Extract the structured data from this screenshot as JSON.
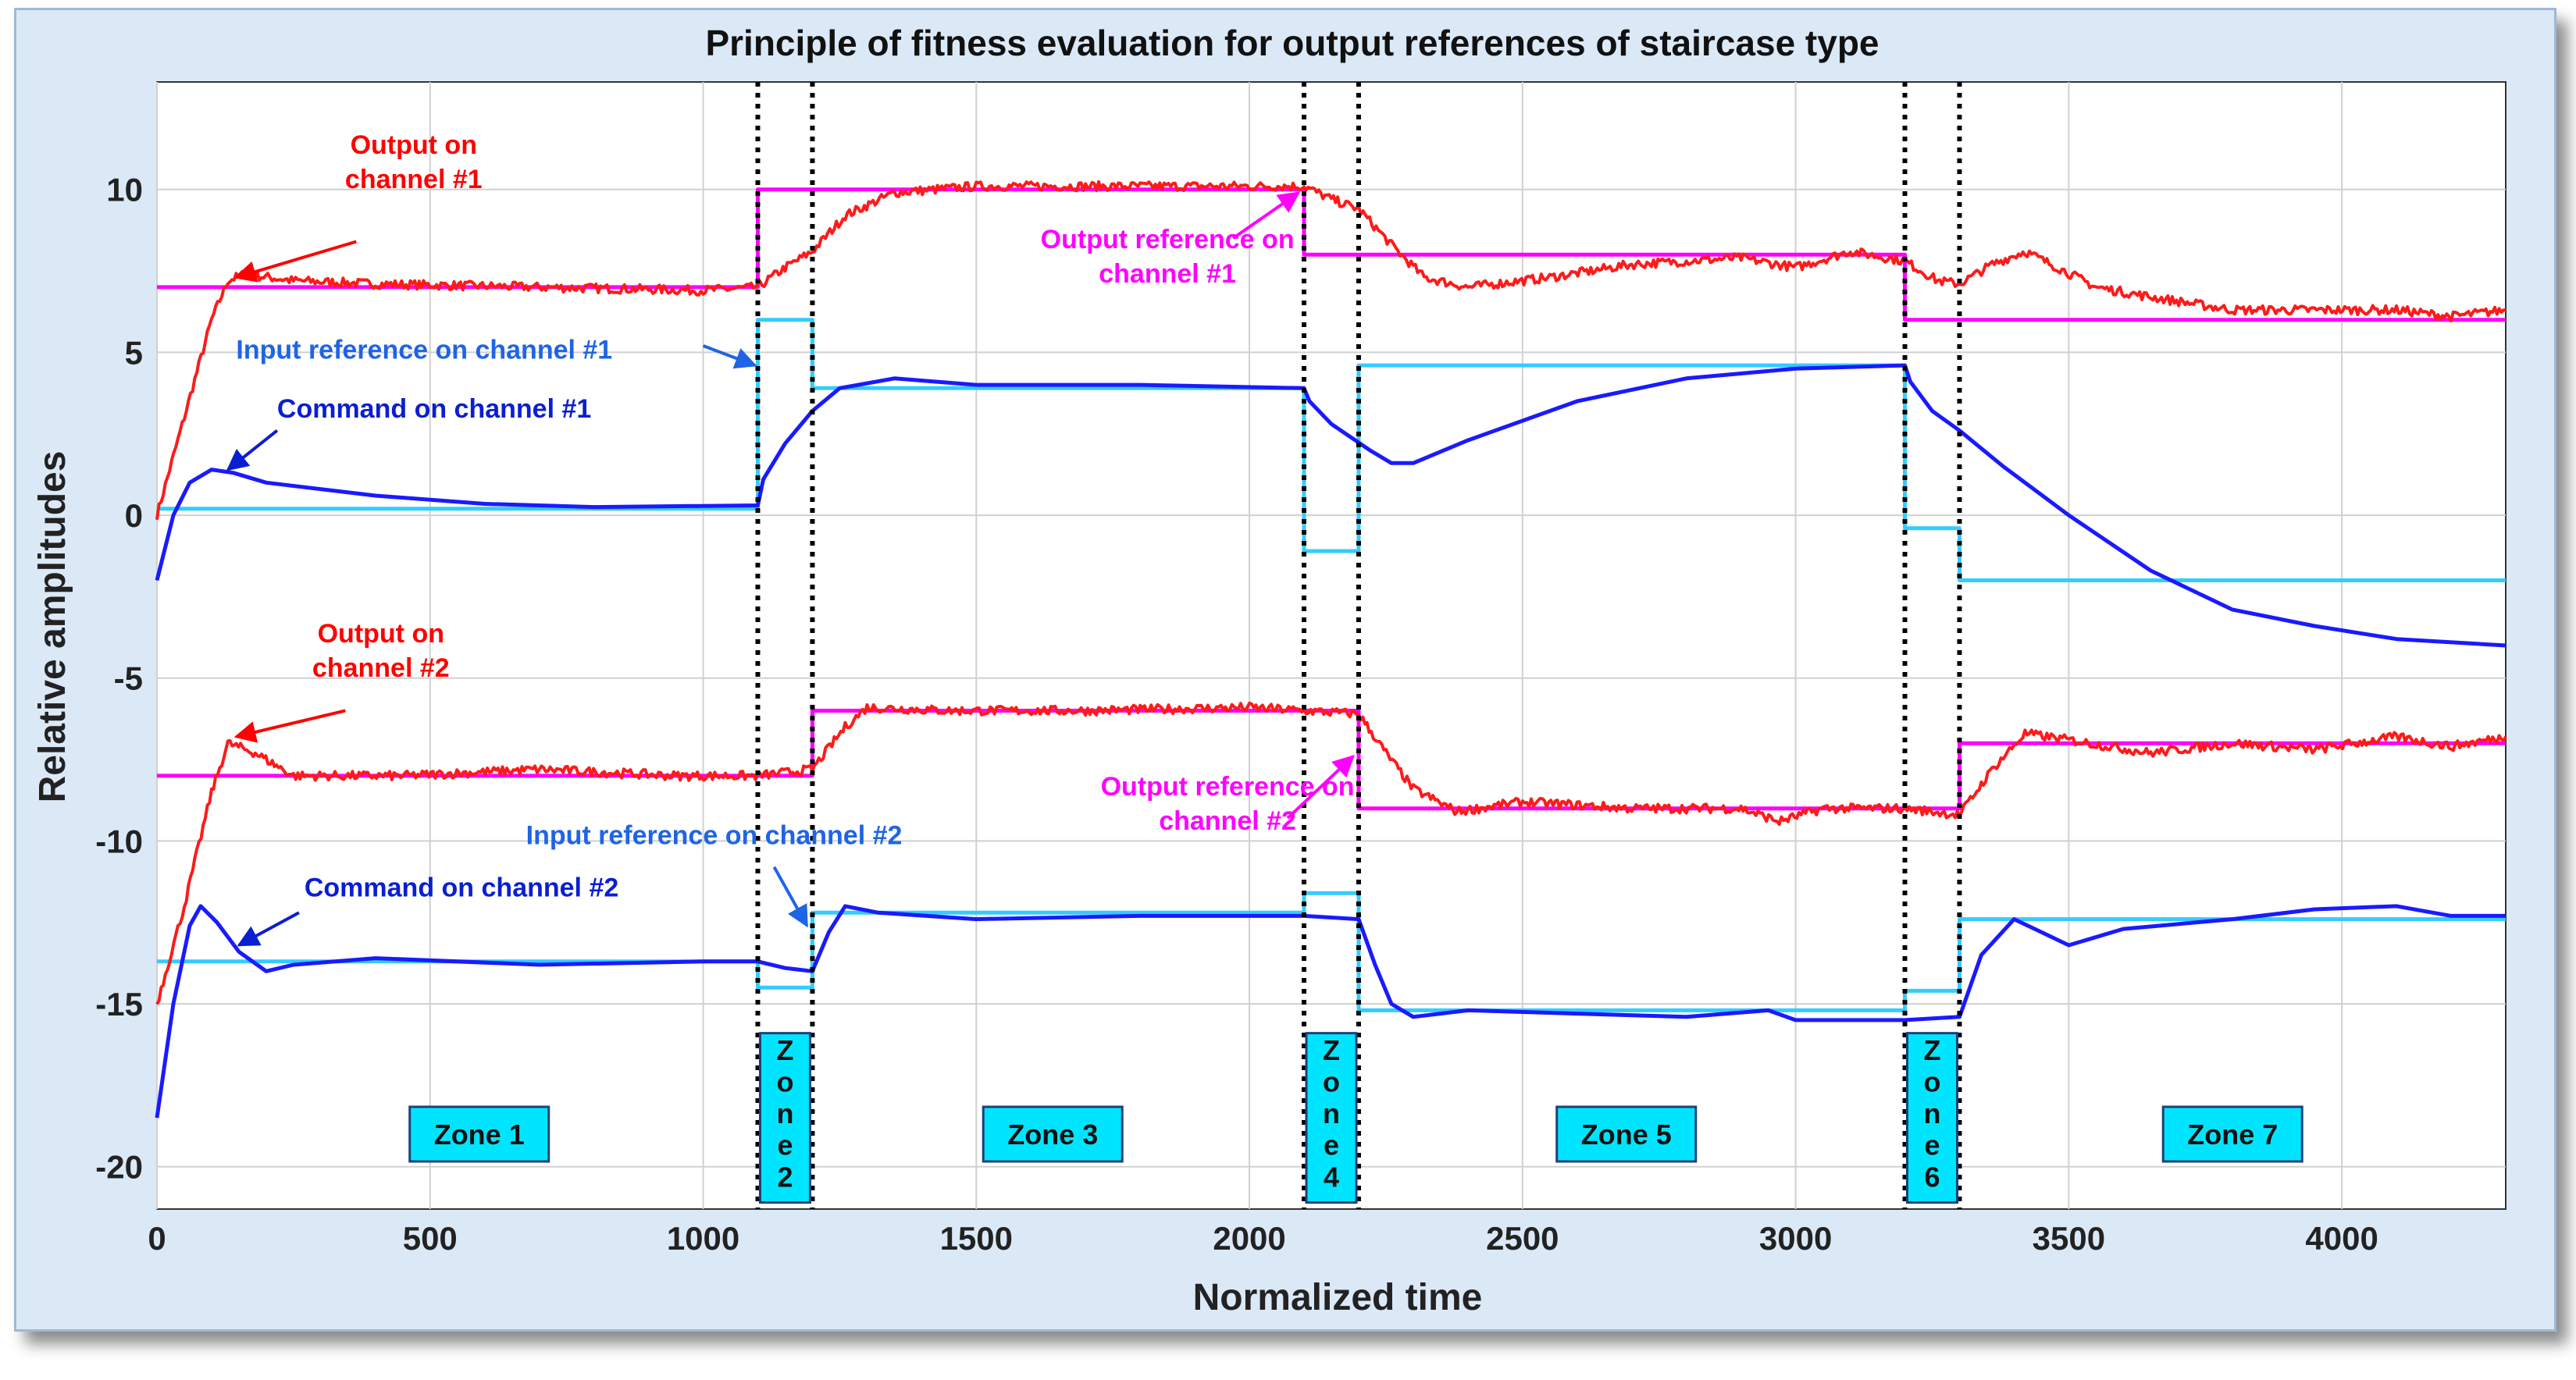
{
  "chart_data": {
    "type": "line",
    "title": "Principle of fitness evaluation for output references of staircase type",
    "xlabel": "Normalized time",
    "ylabel": "Relative amplitudes",
    "xlim": [
      0,
      4300
    ],
    "ylim": [
      -21.3,
      13.3
    ],
    "xticks": [
      0,
      500,
      1000,
      1500,
      2000,
      2500,
      3000,
      3500,
      4000
    ],
    "yticks": [
      10,
      5,
      0,
      -5,
      -10,
      -15,
      -20
    ],
    "grid": true,
    "colors": {
      "output": "#ff1a1a",
      "output_reference": "#ff00ff",
      "input_reference": "#33ccff",
      "command": "#1a1aff",
      "zone_box": "#00e5ff",
      "background": "#dbe9f7"
    },
    "zone_boundaries": [
      1100,
      1200,
      2100,
      2200,
      3200,
      3300
    ],
    "zones": [
      {
        "label": "Zone 1",
        "x": 590,
        "vertical": false
      },
      {
        "label": "Zone 2",
        "x": 1150,
        "vertical": true
      },
      {
        "label": "Zone 3",
        "x": 1640,
        "vertical": false
      },
      {
        "label": "Zone 4",
        "x": 2150,
        "vertical": true
      },
      {
        "label": "Zone 5",
        "x": 2690,
        "vertical": false
      },
      {
        "label": "Zone 6",
        "x": 3250,
        "vertical": true
      },
      {
        "label": "Zone 7",
        "x": 3800,
        "vertical": false
      }
    ],
    "series": [
      {
        "name": "Output reference on channel #1",
        "color": "#ff00ff",
        "step": true,
        "points": [
          [
            0,
            7
          ],
          [
            1100,
            7
          ],
          [
            1100,
            10
          ],
          [
            2100,
            10
          ],
          [
            2100,
            8
          ],
          [
            3200,
            8
          ],
          [
            3200,
            6
          ],
          [
            4300,
            6
          ]
        ]
      },
      {
        "name": "Output reference on channel #2",
        "color": "#ff00ff",
        "step": true,
        "points": [
          [
            0,
            -8
          ],
          [
            1200,
            -8
          ],
          [
            1200,
            -6
          ],
          [
            2200,
            -6
          ],
          [
            2200,
            -9
          ],
          [
            3300,
            -9
          ],
          [
            3300,
            -7
          ],
          [
            4300,
            -7
          ]
        ]
      },
      {
        "name": "Input reference on channel #1",
        "color": "#33ccff",
        "step": true,
        "points": [
          [
            0,
            0.2
          ],
          [
            1100,
            0.2
          ],
          [
            1100,
            6
          ],
          [
            1200,
            6
          ],
          [
            1200,
            3.9
          ],
          [
            2100,
            3.9
          ],
          [
            2100,
            -1.1
          ],
          [
            2200,
            -1.1
          ],
          [
            2200,
            4.6
          ],
          [
            3200,
            4.6
          ],
          [
            3200,
            -0.4
          ],
          [
            3300,
            -0.4
          ],
          [
            3300,
            -2
          ],
          [
            4300,
            -2
          ]
        ]
      },
      {
        "name": "Input reference on channel #2",
        "color": "#33ccff",
        "step": true,
        "points": [
          [
            0,
            -13.7
          ],
          [
            1100,
            -13.7
          ],
          [
            1100,
            -14.5
          ],
          [
            1200,
            -14.5
          ],
          [
            1200,
            -12.2
          ],
          [
            2100,
            -12.2
          ],
          [
            2100,
            -11.6
          ],
          [
            2200,
            -11.6
          ],
          [
            2200,
            -15.2
          ],
          [
            3200,
            -15.2
          ],
          [
            3200,
            -14.6
          ],
          [
            3300,
            -14.6
          ],
          [
            3300,
            -12.4
          ],
          [
            4300,
            -12.4
          ]
        ]
      },
      {
        "name": "Output on channel #1",
        "color": "#ff1a1a",
        "noisy": true,
        "points": [
          [
            0,
            0
          ],
          [
            50,
            3
          ],
          [
            100,
            6
          ],
          [
            130,
            7.2
          ],
          [
            160,
            7.4
          ],
          [
            250,
            7.2
          ],
          [
            400,
            7.1
          ],
          [
            700,
            7
          ],
          [
            1000,
            6.9
          ],
          [
            1100,
            7
          ],
          [
            1150,
            7.6
          ],
          [
            1200,
            8.1
          ],
          [
            1260,
            9.2
          ],
          [
            1350,
            9.9
          ],
          [
            1500,
            10.1
          ],
          [
            1800,
            10.1
          ],
          [
            2100,
            10.1
          ],
          [
            2150,
            9.7
          ],
          [
            2200,
            9.4
          ],
          [
            2260,
            8.3
          ],
          [
            2320,
            7.3
          ],
          [
            2400,
            7
          ],
          [
            2550,
            7.3
          ],
          [
            2700,
            7.7
          ],
          [
            2900,
            7.9
          ],
          [
            3000,
            7.6
          ],
          [
            3100,
            8.1
          ],
          [
            3200,
            7.8
          ],
          [
            3260,
            7.2
          ],
          [
            3300,
            7.1
          ],
          [
            3360,
            7.7
          ],
          [
            3420,
            8.1
          ],
          [
            3480,
            7.6
          ],
          [
            3550,
            7.0
          ],
          [
            3650,
            6.7
          ],
          [
            3800,
            6.3
          ],
          [
            3950,
            6.3
          ],
          [
            4100,
            6.3
          ],
          [
            4200,
            6.1
          ],
          [
            4300,
            6.3
          ]
        ]
      },
      {
        "name": "Output on channel #2",
        "color": "#ff1a1a",
        "noisy": true,
        "points": [
          [
            0,
            -15
          ],
          [
            50,
            -12
          ],
          [
            100,
            -8.5
          ],
          [
            130,
            -7
          ],
          [
            180,
            -7.3
          ],
          [
            250,
            -8
          ],
          [
            450,
            -8
          ],
          [
            700,
            -7.8
          ],
          [
            950,
            -8
          ],
          [
            1100,
            -8
          ],
          [
            1200,
            -7.8
          ],
          [
            1260,
            -6.5
          ],
          [
            1300,
            -5.9
          ],
          [
            1450,
            -6
          ],
          [
            1700,
            -6
          ],
          [
            2000,
            -5.9
          ],
          [
            2200,
            -6.1
          ],
          [
            2250,
            -7.3
          ],
          [
            2300,
            -8.4
          ],
          [
            2380,
            -9.1
          ],
          [
            2500,
            -8.8
          ],
          [
            2700,
            -9
          ],
          [
            2900,
            -9
          ],
          [
            2970,
            -9.4
          ],
          [
            3050,
            -9
          ],
          [
            3200,
            -9
          ],
          [
            3300,
            -9.2
          ],
          [
            3360,
            -7.8
          ],
          [
            3420,
            -6.7
          ],
          [
            3500,
            -6.9
          ],
          [
            3650,
            -7.3
          ],
          [
            3800,
            -7.0
          ],
          [
            3950,
            -7.2
          ],
          [
            4100,
            -6.8
          ],
          [
            4200,
            -7.1
          ],
          [
            4300,
            -6.8
          ]
        ]
      },
      {
        "name": "Command on channel #1",
        "color": "#1a1aff",
        "noisy": false,
        "points": [
          [
            0,
            -2
          ],
          [
            30,
            0
          ],
          [
            60,
            1
          ],
          [
            100,
            1.4
          ],
          [
            140,
            1.3
          ],
          [
            200,
            1
          ],
          [
            400,
            0.6
          ],
          [
            600,
            0.35
          ],
          [
            800,
            0.25
          ],
          [
            1100,
            0.3
          ],
          [
            1110,
            1.1
          ],
          [
            1150,
            2.2
          ],
          [
            1200,
            3.2
          ],
          [
            1250,
            3.9
          ],
          [
            1350,
            4.2
          ],
          [
            1500,
            4.0
          ],
          [
            1800,
            4.0
          ],
          [
            2100,
            3.9
          ],
          [
            2110,
            3.5
          ],
          [
            2150,
            2.8
          ],
          [
            2220,
            2.0
          ],
          [
            2260,
            1.6
          ],
          [
            2300,
            1.6
          ],
          [
            2400,
            2.3
          ],
          [
            2600,
            3.5
          ],
          [
            2800,
            4.2
          ],
          [
            3000,
            4.5
          ],
          [
            3200,
            4.6
          ],
          [
            3210,
            4.1
          ],
          [
            3250,
            3.2
          ],
          [
            3300,
            2.6
          ],
          [
            3380,
            1.5
          ],
          [
            3500,
            0
          ],
          [
            3650,
            -1.7
          ],
          [
            3800,
            -2.9
          ],
          [
            3950,
            -3.4
          ],
          [
            4100,
            -3.8
          ],
          [
            4300,
            -4
          ]
        ]
      },
      {
        "name": "Command on channel #2",
        "color": "#1a1aff",
        "noisy": false,
        "points": [
          [
            0,
            -18.5
          ],
          [
            30,
            -15
          ],
          [
            60,
            -12.6
          ],
          [
            80,
            -12
          ],
          [
            110,
            -12.5
          ],
          [
            150,
            -13.4
          ],
          [
            200,
            -14
          ],
          [
            250,
            -13.8
          ],
          [
            400,
            -13.6
          ],
          [
            700,
            -13.8
          ],
          [
            1000,
            -13.7
          ],
          [
            1100,
            -13.7
          ],
          [
            1150,
            -13.9
          ],
          [
            1200,
            -14
          ],
          [
            1230,
            -12.8
          ],
          [
            1260,
            -12
          ],
          [
            1320,
            -12.2
          ],
          [
            1500,
            -12.4
          ],
          [
            1800,
            -12.3
          ],
          [
            2100,
            -12.3
          ],
          [
            2200,
            -12.4
          ],
          [
            2230,
            -13.8
          ],
          [
            2260,
            -15
          ],
          [
            2300,
            -15.4
          ],
          [
            2400,
            -15.2
          ],
          [
            2600,
            -15.3
          ],
          [
            2800,
            -15.4
          ],
          [
            2950,
            -15.2
          ],
          [
            3000,
            -15.5
          ],
          [
            3200,
            -15.5
          ],
          [
            3300,
            -15.4
          ],
          [
            3340,
            -13.5
          ],
          [
            3400,
            -12.4
          ],
          [
            3450,
            -12.8
          ],
          [
            3500,
            -13.2
          ],
          [
            3600,
            -12.7
          ],
          [
            3800,
            -12.4
          ],
          [
            3950,
            -12.1
          ],
          [
            4100,
            -12.0
          ],
          [
            4200,
            -12.3
          ],
          [
            4300,
            -12.3
          ]
        ]
      }
    ],
    "annotations": [
      {
        "lines": [
          "Output on",
          "channel #1"
        ],
        "color": "#ff0000",
        "text_x": 470,
        "text_y": 11.1,
        "anchor": "middle",
        "arrow_from": [
          365,
          8.4
        ],
        "arrow_to": [
          145,
          7.3
        ]
      },
      {
        "lines": [
          "Output reference on",
          "channel #1"
        ],
        "color": "#ff00ff",
        "text_x": 1850,
        "text_y": 8.2,
        "anchor": "middle",
        "arrow_from": [
          1970,
          8.5
        ],
        "arrow_to": [
          2090,
          9.9
        ]
      },
      {
        "lines": [
          "Input reference on channel #1"
        ],
        "color": "#1e64e6",
        "text_x": 145,
        "text_y": 4.8,
        "anchor": "start",
        "arrow_from": [
          1000,
          5.2
        ],
        "arrow_to": [
          1095,
          4.6
        ]
      },
      {
        "lines": [
          "Command on channel #1"
        ],
        "color": "#0a1ed2",
        "text_x": 220,
        "text_y": 3.0,
        "anchor": "start",
        "arrow_from": [
          220,
          2.6
        ],
        "arrow_to": [
          130,
          1.4
        ]
      },
      {
        "lines": [
          "Output on",
          "channel #2"
        ],
        "color": "#ff0000",
        "text_x": 410,
        "text_y": -3.9,
        "anchor": "middle",
        "arrow_from": [
          345,
          -6.0
        ],
        "arrow_to": [
          145,
          -6.8
        ]
      },
      {
        "lines": [
          "Output reference on",
          "channel #2"
        ],
        "color": "#ff00ff",
        "text_x": 1960,
        "text_y": -8.6,
        "anchor": "middle",
        "arrow_from": [
          2070,
          -9.3
        ],
        "arrow_to": [
          2190,
          -7.4
        ]
      },
      {
        "lines": [
          "Input reference on channel #2"
        ],
        "color": "#1e64e6",
        "text_x": 1020,
        "text_y": -10.1,
        "anchor": "middle",
        "arrow_from": [
          1130,
          -10.8
        ],
        "arrow_to": [
          1190,
          -12.6
        ]
      },
      {
        "lines": [
          "Command on channel #2"
        ],
        "color": "#0a1ed2",
        "text_x": 270,
        "text_y": -11.7,
        "anchor": "start",
        "arrow_from": [
          260,
          -12.2
        ],
        "arrow_to": [
          150,
          -13.2
        ]
      }
    ]
  }
}
